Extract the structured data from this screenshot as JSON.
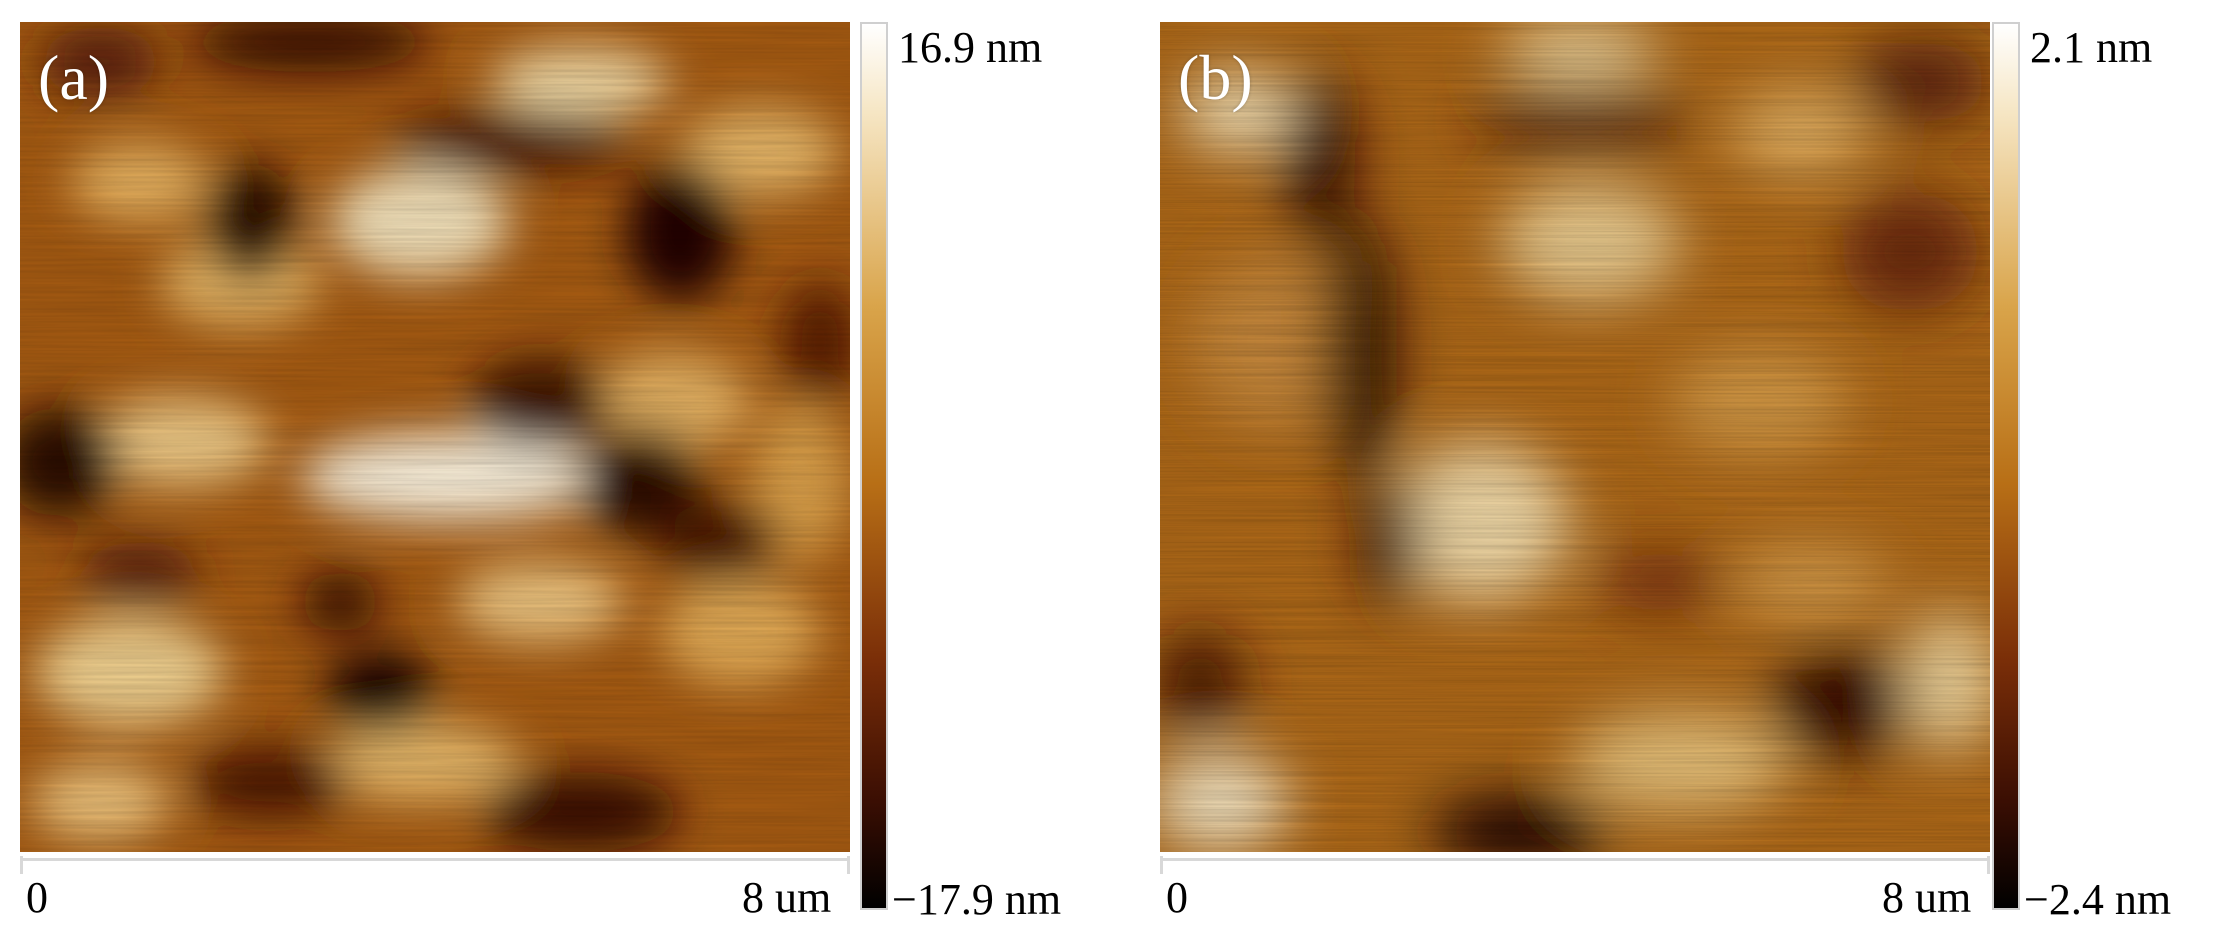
{
  "panels": [
    {
      "label": "(a)",
      "scale_start": "0",
      "scale_end": "8 um",
      "colorbar_max": "16.9 nm",
      "colorbar_min": "−17.9 nm"
    },
    {
      "label": "(b)",
      "scale_start": "0",
      "scale_end": "8 um",
      "colorbar_max": "2.1 nm",
      "colorbar_min": "−2.4 nm"
    }
  ],
  "colors": {
    "high": "#ffffff",
    "mid": "#b86f16",
    "low": "#000000"
  }
}
